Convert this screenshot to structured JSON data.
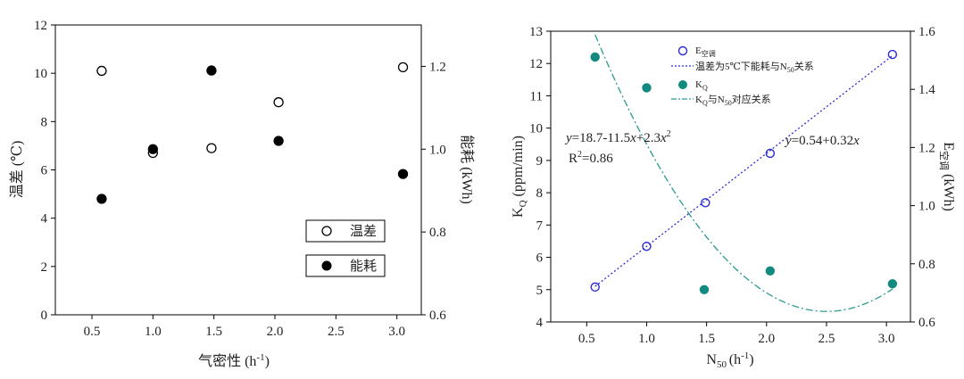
{
  "chart_data": [
    {
      "type": "scatter",
      "panel": "left",
      "xlabel": "气密性 (h⁻¹)",
      "ylabel": "温差 (℃)",
      "y2label": "能耗 (kWh)",
      "xlim": [
        0.2,
        3.2
      ],
      "ylim": [
        0,
        12
      ],
      "y2lim": [
        0.6,
        1.3
      ],
      "x_ticks": [
        "0.5",
        "1.0",
        "1.5",
        "2.0",
        "2.5",
        "3.0"
      ],
      "y_ticks": [
        "0",
        "2",
        "4",
        "6",
        "8",
        "10",
        "12"
      ],
      "y2_ticks": [
        "0.6",
        "0.8",
        "1.0",
        "1.2"
      ],
      "grid": false,
      "legend_position": "bottom-right",
      "series": [
        {
          "name": "温差",
          "axis": "left",
          "marker": "open-circle",
          "color": "#000000",
          "x": [
            0.58,
            1.0,
            1.48,
            2.03,
            3.05
          ],
          "y": [
            10.1,
            6.7,
            6.9,
            8.8,
            10.25
          ]
        },
        {
          "name": "能耗",
          "axis": "right",
          "marker": "filled-circle",
          "color": "#000000",
          "x": [
            0.58,
            1.0,
            1.48,
            2.03,
            3.05
          ],
          "y": [
            0.88,
            1.0,
            1.19,
            1.02,
            0.94
          ]
        }
      ]
    },
    {
      "type": "scatter",
      "panel": "right",
      "xlabel": "N50 (h⁻¹)",
      "ylabel": "KQ (ppm/min)",
      "y2label": "E空调 (kWh)",
      "xlim": [
        0.2,
        3.2
      ],
      "ylim": [
        4,
        13
      ],
      "y2lim": [
        0.6,
        1.6
      ],
      "x_ticks": [
        "0.5",
        "1.0",
        "1.5",
        "2.0",
        "2.5",
        "3.0"
      ],
      "y_ticks": [
        "4",
        "5",
        "6",
        "7",
        "8",
        "9",
        "10",
        "11",
        "12",
        "13"
      ],
      "y2_ticks": [
        "0.6",
        "0.8",
        "1.0",
        "1.2",
        "1.4",
        "1.6"
      ],
      "grid": false,
      "legend_position": "top-right",
      "series": [
        {
          "name": "E空调",
          "axis": "right",
          "marker": "open-circle",
          "color": "#2b2bd6",
          "x": [
            0.57,
            1.0,
            1.49,
            2.03,
            3.05
          ],
          "y": [
            0.72,
            0.86,
            1.01,
            1.18,
            1.52
          ]
        },
        {
          "name": "温差为5℃下能耗与N50关系",
          "axis": "right",
          "kind": "fit-line",
          "style": "dotted",
          "color": "#2b2bd6",
          "intercept": 0.54,
          "slope": 0.32,
          "x_range": [
            0.57,
            3.05
          ]
        },
        {
          "name": "KQ",
          "axis": "left",
          "marker": "filled-circle",
          "color": "#138a80",
          "x": [
            0.57,
            1.0,
            1.48,
            2.03,
            3.05
          ],
          "y": [
            12.2,
            11.25,
            5.0,
            5.58,
            5.18
          ]
        },
        {
          "name": "KQ与N50对应关系",
          "axis": "left",
          "kind": "fit-curve",
          "style": "dash-dot",
          "color": "#2a9a90",
          "coefficients": [
            18.7,
            -11.5,
            2.3
          ],
          "x_range": [
            0.57,
            3.05
          ]
        }
      ],
      "annotations": {
        "eq_quad": "y=18.7-11.5x+2.3x²",
        "r2": "R²=0.86",
        "eq_linear": "y=0.54+0.32x"
      }
    }
  ]
}
